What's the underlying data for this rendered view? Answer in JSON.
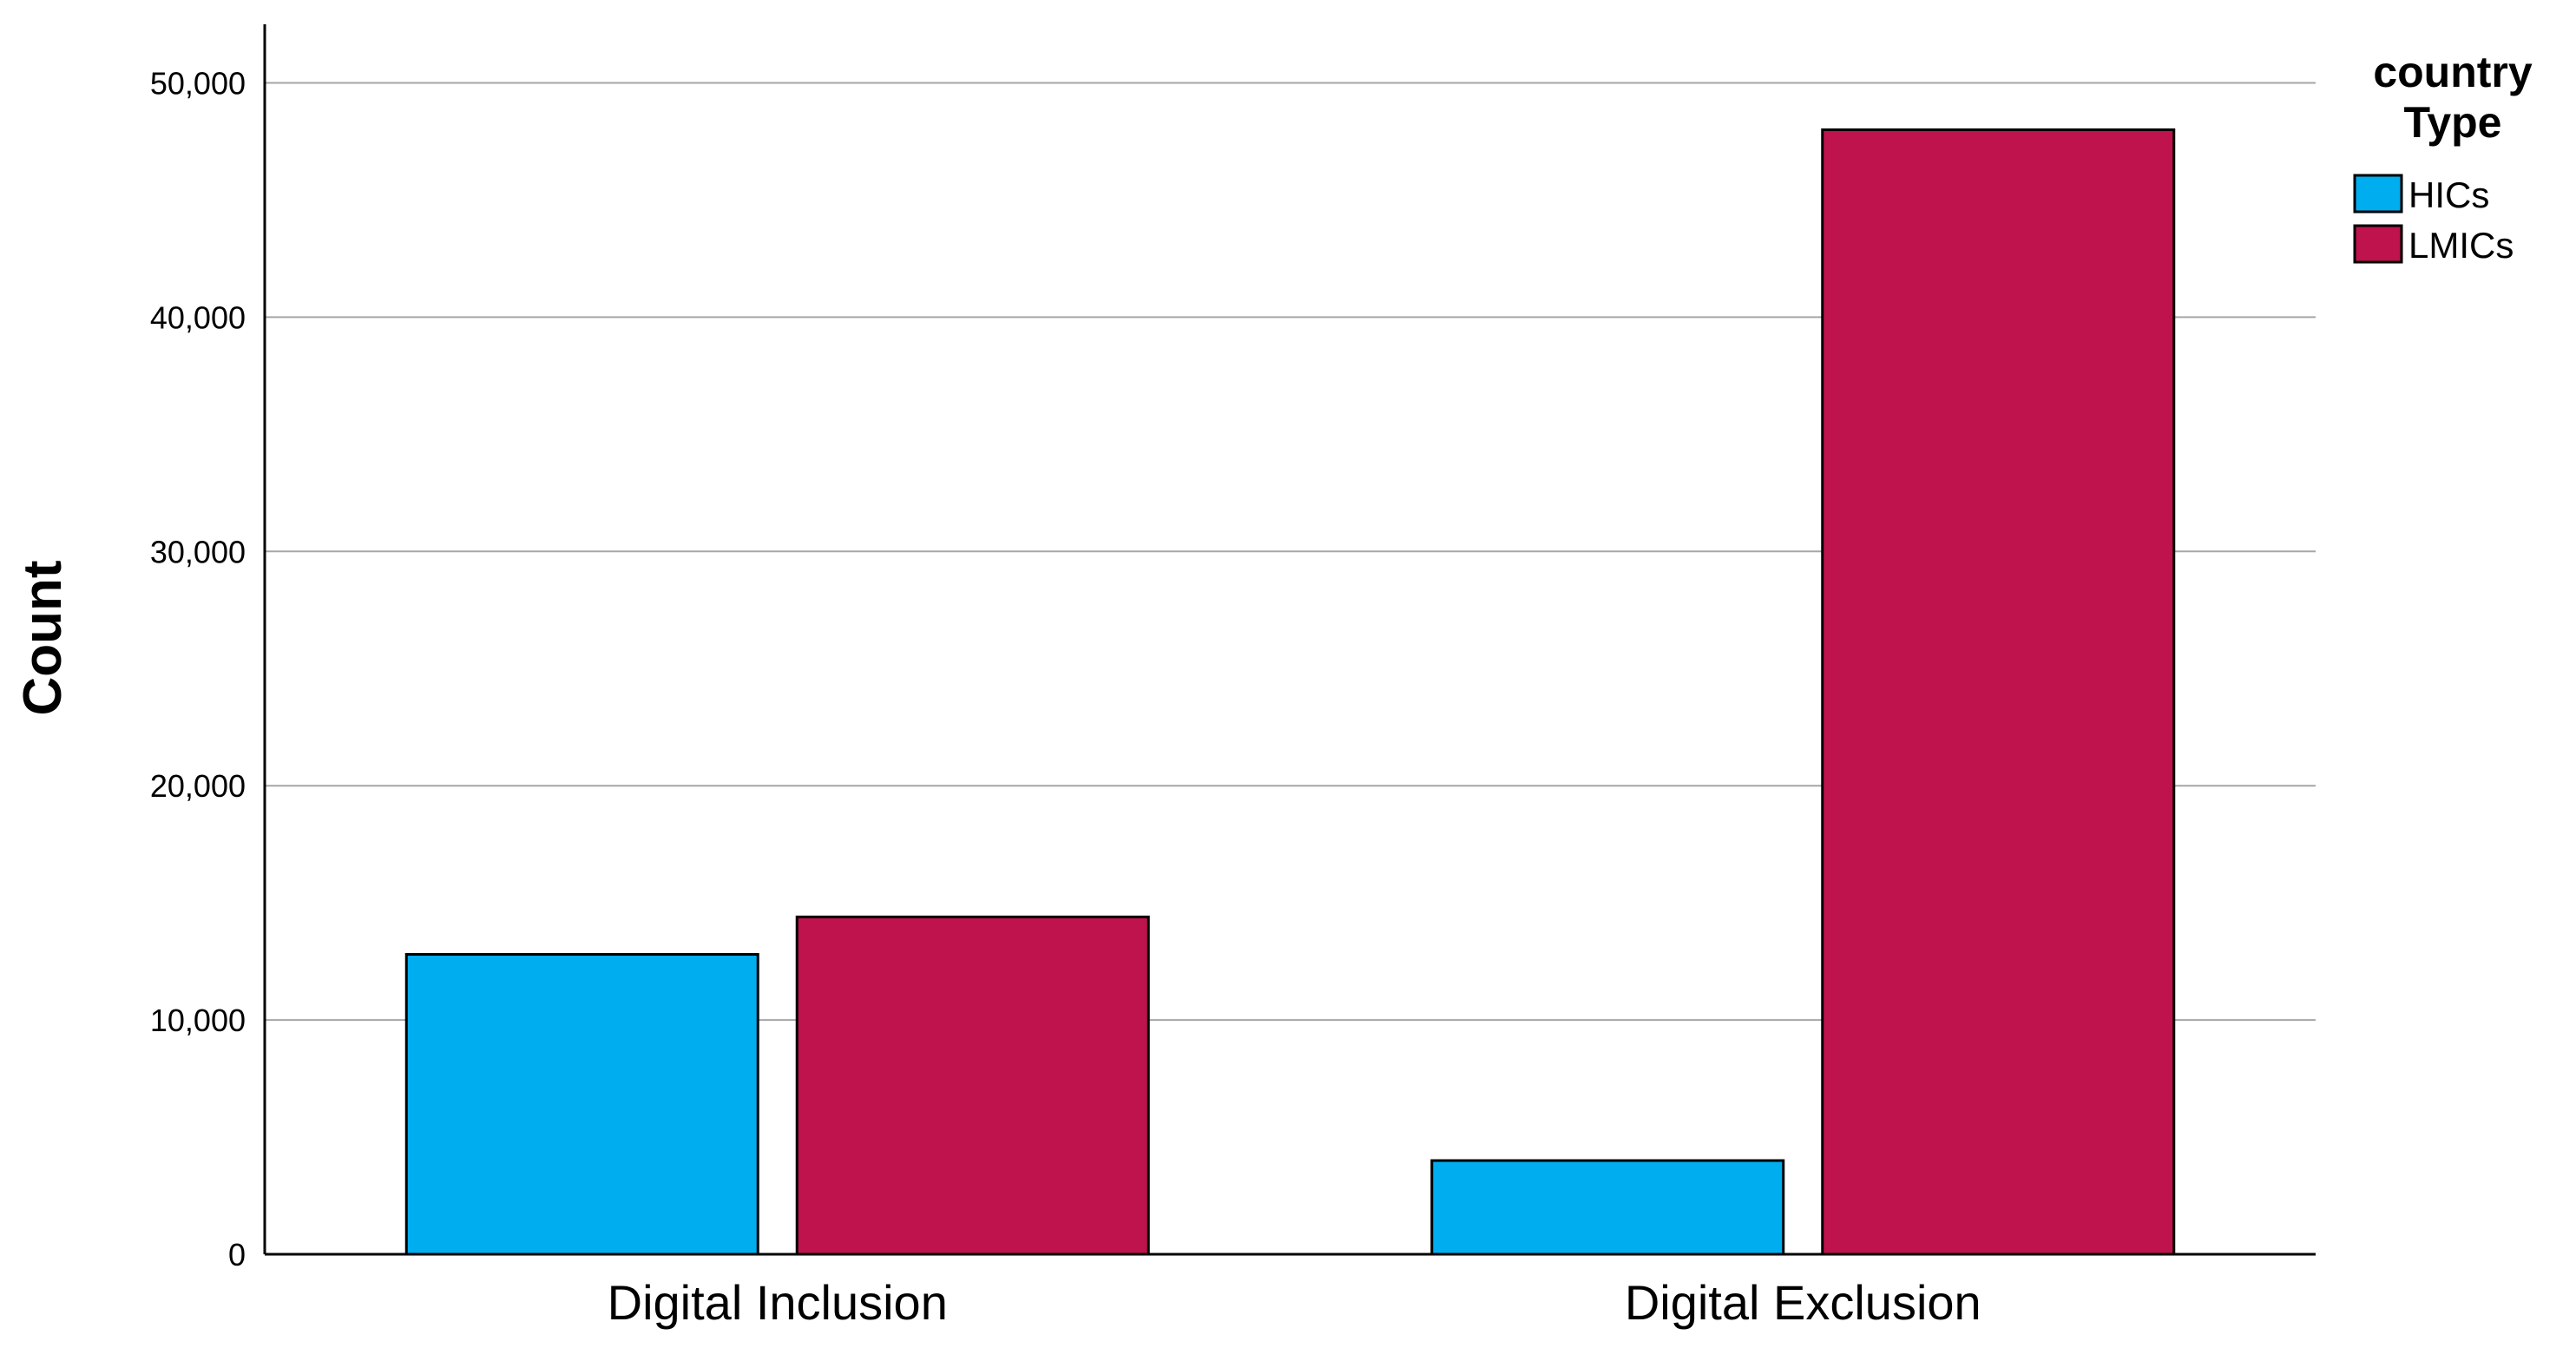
{
  "chart_data": {
    "type": "bar",
    "categories": [
      "Digital Inclusion",
      "Digital Exclusion"
    ],
    "series": [
      {
        "name": "HICs",
        "values": [
          12800,
          4000
        ],
        "color": "#00AEEF"
      },
      {
        "name": "LMICs",
        "values": [
          14400,
          48000
        ],
        "color": "#BE134D"
      }
    ],
    "title": "",
    "xlabel": "",
    "ylabel": "Count",
    "ylim": [
      0,
      52500
    ],
    "yticks": [
      0,
      10000,
      20000,
      30000,
      40000,
      50000
    ],
    "ytick_labels": [
      "0",
      "10,000",
      "20,000",
      "30,000",
      "40,000",
      "50,000"
    ],
    "grid": true,
    "legend": {
      "title_lines": [
        "country",
        "Type"
      ],
      "position": "right"
    }
  }
}
